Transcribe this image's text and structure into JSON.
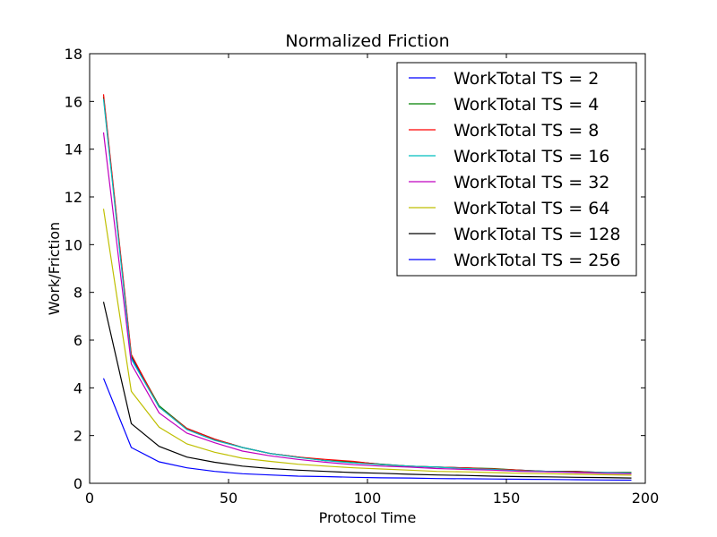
{
  "chart_data": {
    "type": "line",
    "title": "Normalized Friction",
    "xlabel": "Protocol Time",
    "ylabel": "Work/Friction",
    "xlim": [
      0,
      200
    ],
    "ylim": [
      0,
      18
    ],
    "xticks": [
      0,
      50,
      100,
      150,
      200
    ],
    "yticks": [
      0,
      2,
      4,
      6,
      8,
      10,
      12,
      14,
      16,
      18
    ],
    "grid": false,
    "legend_position": "top-right",
    "x": [
      5,
      15,
      25,
      35,
      45,
      55,
      65,
      75,
      85,
      95,
      105,
      115,
      125,
      135,
      145,
      155,
      165,
      175,
      185,
      195
    ],
    "series": [
      {
        "name": "WorkTotal TS = 2",
        "color": "#0000ff",
        "values": [
          16.2,
          5.3,
          3.2,
          2.3,
          1.85,
          1.5,
          1.25,
          1.1,
          0.95,
          0.9,
          0.8,
          0.72,
          0.68,
          0.65,
          0.6,
          0.55,
          0.5,
          0.5,
          0.45,
          0.45
        ]
      },
      {
        "name": "WorkTotal TS = 4",
        "color": "#008000",
        "values": [
          16.2,
          5.35,
          3.25,
          2.3,
          1.85,
          1.5,
          1.25,
          1.1,
          0.95,
          0.9,
          0.8,
          0.72,
          0.68,
          0.65,
          0.62,
          0.55,
          0.5,
          0.5,
          0.45,
          0.45
        ]
      },
      {
        "name": "WorkTotal TS = 8",
        "color": "#ff0000",
        "values": [
          16.3,
          5.4,
          3.2,
          2.3,
          1.85,
          1.5,
          1.25,
          1.1,
          1.0,
          0.92,
          0.78,
          0.72,
          0.68,
          0.65,
          0.6,
          0.55,
          0.48,
          0.48,
          0.45,
          0.42
        ]
      },
      {
        "name": "WorkTotal TS = 16",
        "color": "#00bfbf",
        "values": [
          16.1,
          5.2,
          3.2,
          2.25,
          1.8,
          1.5,
          1.25,
          1.08,
          0.95,
          0.85,
          0.78,
          0.72,
          0.68,
          0.62,
          0.58,
          0.52,
          0.5,
          0.45,
          0.45,
          0.42
        ]
      },
      {
        "name": "WorkTotal TS = 32",
        "color": "#bf00bf",
        "values": [
          14.7,
          5.0,
          2.95,
          2.1,
          1.7,
          1.35,
          1.15,
          1.0,
          0.88,
          0.78,
          0.72,
          0.68,
          0.62,
          0.58,
          0.55,
          0.5,
          0.48,
          0.45,
          0.42,
          0.4
        ]
      },
      {
        "name": "WorkTotal TS = 64",
        "color": "#bfbf00",
        "values": [
          11.5,
          3.85,
          2.35,
          1.65,
          1.3,
          1.05,
          0.92,
          0.8,
          0.72,
          0.65,
          0.6,
          0.55,
          0.5,
          0.48,
          0.45,
          0.42,
          0.4,
          0.38,
          0.36,
          0.34
        ]
      },
      {
        "name": "WorkTotal TS = 128",
        "color": "#000000",
        "values": [
          7.6,
          2.5,
          1.55,
          1.1,
          0.88,
          0.72,
          0.62,
          0.55,
          0.5,
          0.45,
          0.42,
          0.38,
          0.35,
          0.33,
          0.3,
          0.28,
          0.27,
          0.25,
          0.24,
          0.22
        ]
      },
      {
        "name": "WorkTotal TS = 256",
        "color": "#0000ff",
        "values": [
          4.4,
          1.5,
          0.9,
          0.65,
          0.5,
          0.4,
          0.35,
          0.3,
          0.28,
          0.25,
          0.23,
          0.22,
          0.2,
          0.19,
          0.18,
          0.17,
          0.16,
          0.15,
          0.14,
          0.13
        ]
      }
    ]
  }
}
